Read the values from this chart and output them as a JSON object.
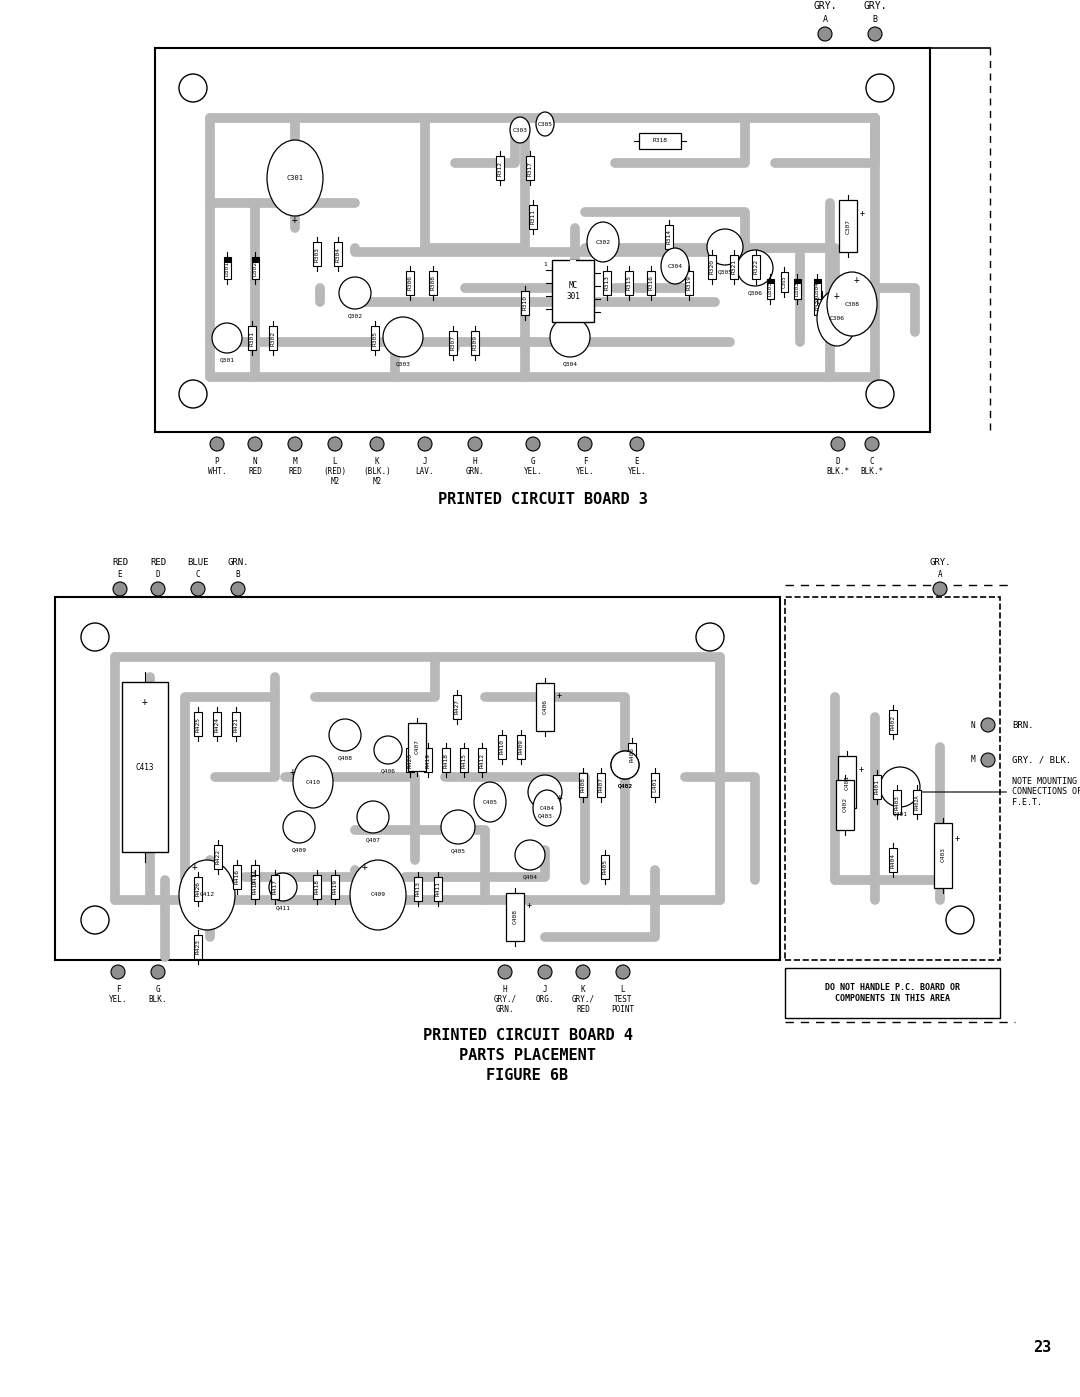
{
  "page_bg": "#ffffff",
  "page_number": "23",
  "board3_title": "PRINTED CIRCUIT BOARD 3",
  "board4_title": "PRINTED CIRCUIT BOARD 4",
  "parts_placement": "PARTS PLACEMENT",
  "figure": "FIGURE 6B",
  "board3_bottom_letters": [
    "P",
    "N",
    "M",
    "L",
    "K",
    "J",
    "H",
    "G",
    "F",
    "E",
    "D",
    "C"
  ],
  "board3_bottom_colors": [
    "WHT.",
    "RED",
    "RED",
    "(RED)",
    "(BLK.)",
    "LAV.",
    "GRN.",
    "YEL.",
    "YEL.",
    "YEL.",
    "BLK.*",
    "BLK.*"
  ],
  "board3_bottom_m2": [
    "",
    "",
    "",
    "M2",
    "M2",
    "",
    "",
    "",
    "",
    "",
    "",
    ""
  ],
  "board4_top_letters": [
    "E",
    "D",
    "C",
    "B"
  ],
  "board4_top_colors": [
    "RED",
    "RED",
    "BLUE",
    "GRN."
  ],
  "board4_bottom_data": [
    [
      "F",
      "YEL.",
      ""
    ],
    [
      "G",
      "BLK.",
      ""
    ],
    [
      "H",
      "GRY./",
      "GRN."
    ],
    [
      "J",
      "ORG.",
      ""
    ],
    [
      "K",
      "GRY./",
      "RED"
    ],
    [
      "L",
      "TEST",
      "POINT"
    ]
  ],
  "do_not_handle": "DO NOT HANDLE P.C. BOARD OR\nCOMPONENTS IN THIS AREA",
  "note_mounting": "NOTE MOUNTING AND\nCONNECTIONS OF\nF.E.T.",
  "trace_color": "#b8b8b8",
  "trace_lw": 7
}
